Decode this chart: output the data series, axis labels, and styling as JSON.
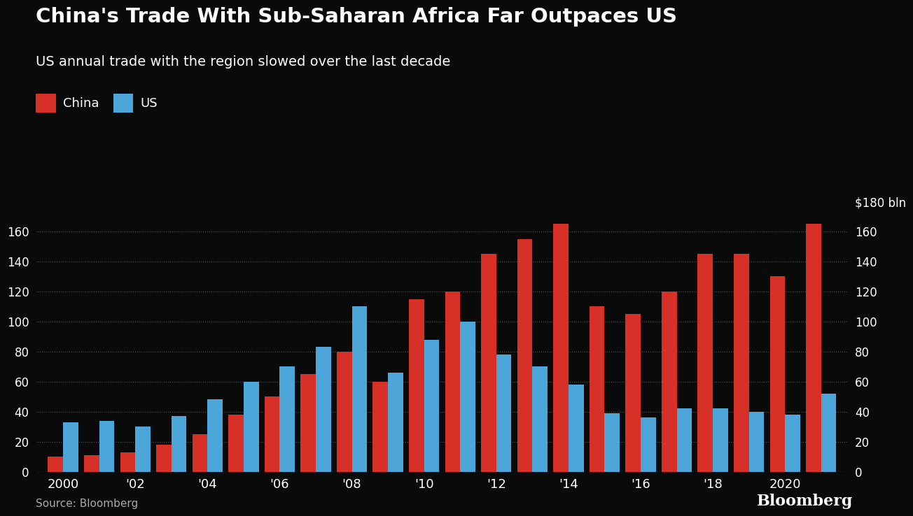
{
  "title": "China's Trade With Sub-Saharan Africa Far Outpaces US",
  "subtitle": "US annual trade with the region slowed over the last decade",
  "source": "Source: Bloomberg",
  "years": [
    2000,
    2001,
    2002,
    2003,
    2004,
    2005,
    2006,
    2007,
    2008,
    2009,
    2010,
    2011,
    2012,
    2013,
    2014,
    2015,
    2016,
    2017,
    2018,
    2019,
    2020,
    2021
  ],
  "china": [
    10,
    11,
    13,
    18,
    25,
    38,
    50,
    65,
    80,
    60,
    115,
    120,
    145,
    155,
    165,
    110,
    105,
    120,
    145,
    145,
    130,
    165
  ],
  "us": [
    33,
    34,
    30,
    37,
    48,
    60,
    70,
    83,
    110,
    66,
    88,
    100,
    78,
    70,
    58,
    39,
    36,
    42,
    42,
    40,
    38,
    52
  ],
  "china_color": "#d63027",
  "us_color": "#4da6d9",
  "background_color": "#0a0a0a",
  "text_color": "#ffffff",
  "grid_color": "#555555",
  "ylabel_right": "$180 bln",
  "yticks": [
    0,
    20,
    40,
    60,
    80,
    100,
    120,
    140,
    160
  ],
  "ylim": [
    0,
    185
  ],
  "xtick_labels": [
    "2000",
    "'02",
    "'04",
    "'06",
    "'08",
    "'10",
    "'12",
    "'14",
    "'16",
    "'18",
    "2020"
  ],
  "xtick_positions": [
    2000,
    2002,
    2004,
    2006,
    2008,
    2010,
    2012,
    2014,
    2016,
    2018,
    2020
  ],
  "legend_china": "China",
  "legend_us": "US",
  "title_fontsize": 21,
  "subtitle_fontsize": 14,
  "bar_width": 0.42
}
